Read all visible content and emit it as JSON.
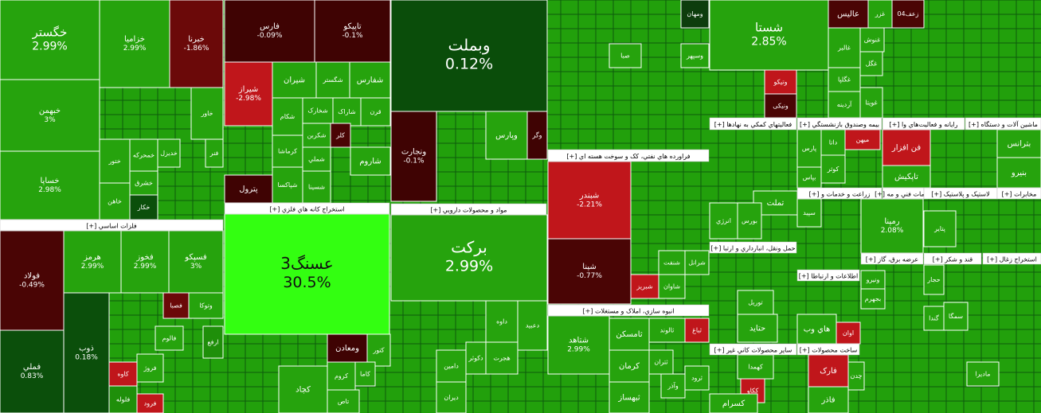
{
  "sector_labels": [
    "فلزات اساسي [+]",
    "استخراج کانه هاي فلزي [+]",
    "مواد و محصولات دارويي [+]",
    "فراورده هاي نفتي، کک و سوخت هسته اي [+]",
    "انبوه سازي، املاک و مستغلات [+]",
    "فعاليتهاي کمکي به نهادها [+]",
    "بيمه وصندوق بازنشستگي [+]",
    "رايانه و فعاليت‌هاي وا [+]",
    "ماشين آلات و دستگاه [+]",
    "زراعت و خدمات و [+]",
    "خدمات فني و مه [+]",
    "لاستيک و پلاستيک [+]",
    "مخابرات [+]",
    "حمل ونقل، انبارداري و ارتبا [+]",
    "عرضه برق، گاز [+]",
    "قند و شکر [+]",
    "استخراج زغال [+]",
    "اطلاعات و ارتباطا [+]",
    "ساير محصولات کاني غير [+]",
    "ساخت محصولات [+]"
  ],
  "tiles": [
    {
      "name": "خگستر",
      "change": "2.99%"
    },
    {
      "name": "خبهمن",
      "change": "3%"
    },
    {
      "name": "خساپا",
      "change": "2.98%"
    },
    {
      "name": "خزاميا",
      "change": "2.99%"
    },
    {
      "name": "خبرنا",
      "change": "-1.86%"
    },
    {
      "name": "خاور"
    },
    {
      "name": "خاهن"
    },
    {
      "name": "ختور"
    },
    {
      "name": "خکار"
    },
    {
      "name": "خشرق"
    },
    {
      "name": "خديزل"
    },
    {
      "name": "خمحرکه"
    },
    {
      "name": "فنر"
    },
    {
      "name": "فولاد",
      "change": "-0.49%"
    },
    {
      "name": "فملي",
      "change": "0.83%"
    },
    {
      "name": "هرمز",
      "change": "2.99%"
    },
    {
      "name": "فخوز",
      "change": "2.99%"
    },
    {
      "name": "فسپکو",
      "change": "3%"
    },
    {
      "name": "ذوب",
      "change": "0.18%"
    },
    {
      "name": "فصبا"
    },
    {
      "name": "وتوکا"
    },
    {
      "name": "فالوم"
    },
    {
      "name": "ارفع"
    },
    {
      "name": "کاوه"
    },
    {
      "name": "فروژ"
    },
    {
      "name": "فلوله"
    },
    {
      "name": "فرود"
    },
    {
      "name": "فارس",
      "change": "-0.09%"
    },
    {
      "name": "تاپيکو",
      "change": "-0.1%"
    },
    {
      "name": "شيراز",
      "change": "-2.98%"
    },
    {
      "name": "شيران"
    },
    {
      "name": "شگستر"
    },
    {
      "name": "شفارس"
    },
    {
      "name": "شکام"
    },
    {
      "name": "شخارک"
    },
    {
      "name": "شاراک"
    },
    {
      "name": "قرن"
    },
    {
      "name": "کرماشا"
    },
    {
      "name": "شکربن"
    },
    {
      "name": "کلر"
    },
    {
      "name": "شملي"
    },
    {
      "name": "شاروم"
    },
    {
      "name": "شپاکسا"
    },
    {
      "name": "شسينا"
    },
    {
      "name": "پترول"
    },
    {
      "name": "عسنگ3",
      "change": "30.5%"
    },
    {
      "name": "ومعادن"
    },
    {
      "name": "کتور"
    },
    {
      "name": "کچاد"
    },
    {
      "name": "کروم"
    },
    {
      "name": "کاما"
    },
    {
      "name": "تاص"
    },
    {
      "name": "وبملت",
      "change": "0.12%"
    },
    {
      "name": "ونجارت",
      "change": "-0.1%"
    },
    {
      "name": "وپارس"
    },
    {
      "name": "وگر"
    },
    {
      "name": "برکت",
      "change": "2.99%"
    },
    {
      "name": "دعبيد"
    },
    {
      "name": "داوه"
    },
    {
      "name": "هجرت"
    },
    {
      "name": "دکوثر"
    },
    {
      "name": "دامين"
    },
    {
      "name": "ديران"
    },
    {
      "name": "شبندر",
      "change": "-2.21%"
    },
    {
      "name": "شپنا",
      "change": "-0.77%"
    },
    {
      "name": "شنفت"
    },
    {
      "name": "شرانل"
    },
    {
      "name": "شبريز"
    },
    {
      "name": "شاوان"
    },
    {
      "name": "ومهان"
    },
    {
      "name": "وسپهر"
    },
    {
      "name": "صبا"
    },
    {
      "name": "شتاهد",
      "change": "2.99%"
    },
    {
      "name": "ثامسکن"
    },
    {
      "name": "ثالوند"
    },
    {
      "name": "ثباغ"
    },
    {
      "name": "کرمان"
    },
    {
      "name": "ثبهساز"
    },
    {
      "name": "ثتران"
    },
    {
      "name": "ثرود"
    },
    {
      "name": "وآذر"
    },
    {
      "name": "شستا",
      "change": "2.85%"
    },
    {
      "name": "وتيکو"
    },
    {
      "name": "ونيکی"
    },
    {
      "name": "عاليس"
    },
    {
      "name": "غزر"
    },
    {
      "name": "زعف04"
    },
    {
      "name": "غالبر"
    },
    {
      "name": "غنوش"
    },
    {
      "name": "غگل"
    },
    {
      "name": "غگلپا"
    },
    {
      "name": "آردينه"
    },
    {
      "name": "غويتا"
    },
    {
      "name": "پارس"
    },
    {
      "name": "داتا"
    },
    {
      "name": "ميهن"
    },
    {
      "name": "فن افزار"
    },
    {
      "name": "کوثر"
    },
    {
      "name": "بپاس"
    },
    {
      "name": "تاپکيش"
    },
    {
      "name": "بترانس"
    },
    {
      "name": "بنيرو"
    },
    {
      "name": "تملت"
    },
    {
      "name": "انرژي"
    },
    {
      "name": "بورس"
    },
    {
      "name": "پتاير"
    },
    {
      "name": "رمپنا",
      "change": "2.08%"
    },
    {
      "name": "سپيد"
    },
    {
      "name": "توريل"
    },
    {
      "name": "حتايد"
    },
    {
      "name": "کهمدا"
    },
    {
      "name": "ککاو"
    },
    {
      "name": "کسرام"
    },
    {
      "name": "فارک"
    },
    {
      "name": "فاذر"
    },
    {
      "name": "چدن"
    },
    {
      "name": "اوان"
    },
    {
      "name": "هاي وب"
    },
    {
      "name": "بجهرم"
    },
    {
      "name": "ونيرو"
    },
    {
      "name": "حجار"
    },
    {
      "name": "گندا"
    },
    {
      "name": "سمگا"
    },
    {
      "name": "ماديرا"
    }
  ]
}
